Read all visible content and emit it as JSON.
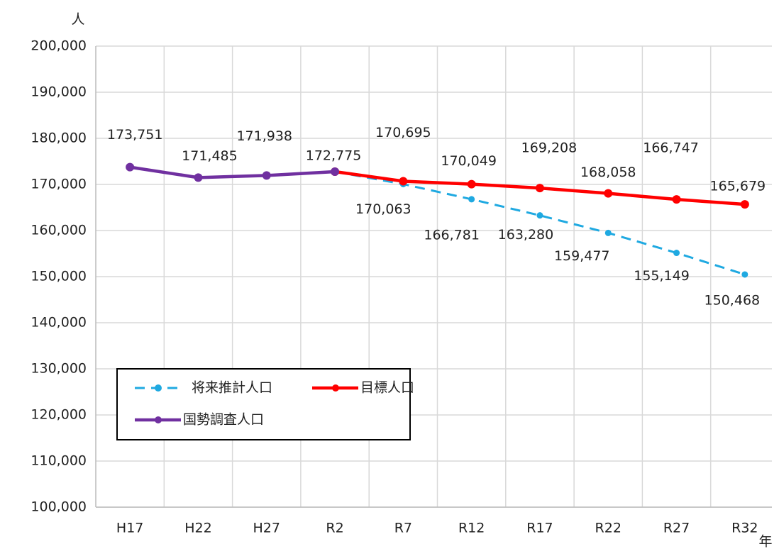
{
  "chart_data": {
    "type": "line",
    "y_label": "人",
    "x_label": "年",
    "categories": [
      "H17",
      "H22",
      "H27",
      "R2",
      "R7",
      "R12",
      "R17",
      "R22",
      "R27",
      "R32"
    ],
    "ylim": [
      100000,
      200000
    ],
    "yticks": [
      {
        "value": 100000,
        "label": "100,000"
      },
      {
        "value": 110000,
        "label": "110,000"
      },
      {
        "value": 120000,
        "label": "120,000"
      },
      {
        "value": 130000,
        "label": "130,000"
      },
      {
        "value": 140000,
        "label": "140,000"
      },
      {
        "value": 150000,
        "label": "150,000"
      },
      {
        "value": 160000,
        "label": "160,000"
      },
      {
        "value": 170000,
        "label": "170,000"
      },
      {
        "value": 180000,
        "label": "180,000"
      },
      {
        "value": 190000,
        "label": "190,000"
      },
      {
        "value": 200000,
        "label": "200,000"
      }
    ],
    "grid": true,
    "series": [
      {
        "name": "将来推計人口",
        "color": "#1fa9e1",
        "dashed": true,
        "values": [
          null,
          null,
          null,
          172775,
          170063,
          166781,
          163280,
          159477,
          155149,
          150468
        ],
        "value_labels": [
          null,
          null,
          null,
          null,
          "170,063",
          "166,781",
          "163,280",
          "159,477",
          "155,149",
          "150,468"
        ]
      },
      {
        "name": "目標人口",
        "color": "#ff0000",
        "dashed": false,
        "values": [
          null,
          null,
          null,
          172775,
          170695,
          170049,
          169208,
          168058,
          166747,
          165679
        ],
        "value_labels": [
          null,
          null,
          null,
          null,
          "170,695",
          "170,049",
          "169,208",
          "168,058",
          "166,747",
          "165,679"
        ]
      },
      {
        "name": "国勢調査人口",
        "color": "#7030a0",
        "dashed": false,
        "values": [
          173751,
          171485,
          171938,
          172775,
          null,
          null,
          null,
          null,
          null,
          null
        ],
        "value_labels": [
          "173,751",
          "171,485",
          "171,938",
          "172,775",
          null,
          null,
          null,
          null,
          null,
          null
        ]
      }
    ]
  }
}
